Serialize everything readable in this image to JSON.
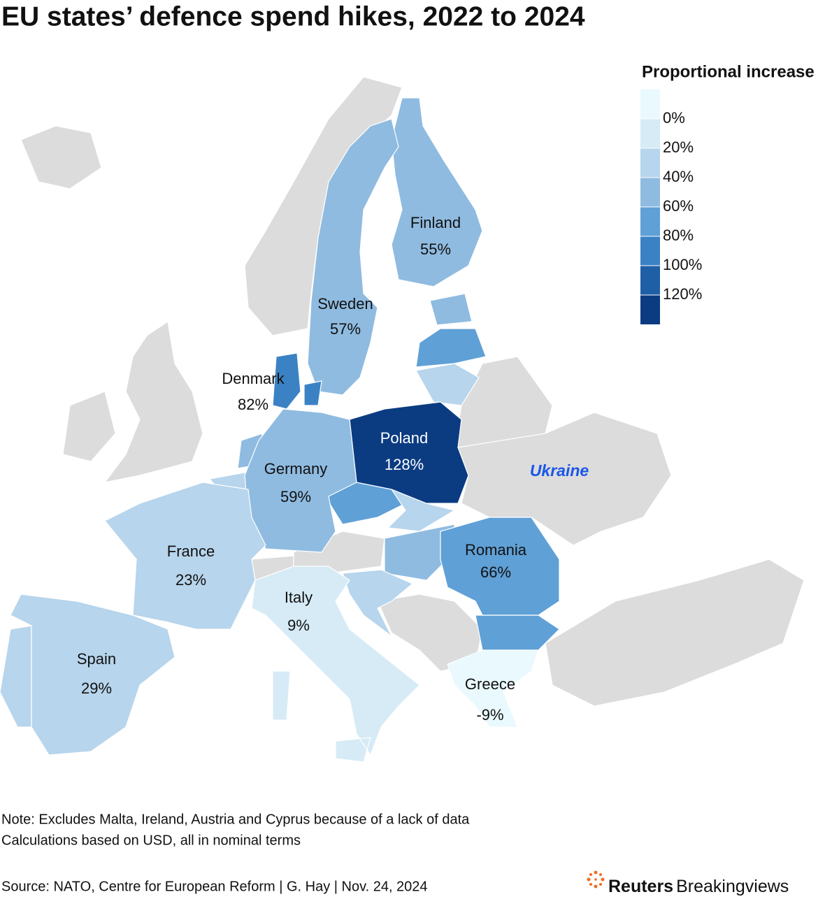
{
  "chart_data": {
    "type": "choropleth",
    "title": "EU states’ defence spend hikes, 2022 to 2024",
    "legend": {
      "title": "Proportional increase",
      "colors": [
        "#e9f9fd",
        "#d6ebf6",
        "#b7d5ec",
        "#8fbbe0",
        "#5fa0d6",
        "#3b82c4",
        "#1f5fa5",
        "#0b3c82"
      ],
      "ticks": [
        {
          "value": 0,
          "label": "0%"
        },
        {
          "value": 20,
          "label": "20%"
        },
        {
          "value": 40,
          "label": "40%"
        },
        {
          "value": 60,
          "label": "60%"
        },
        {
          "value": 80,
          "label": "80%"
        },
        {
          "value": 100,
          "label": "100%"
        },
        {
          "value": 120,
          "label": "120%"
        }
      ]
    },
    "regions": [
      {
        "name": "Finland",
        "value": 55,
        "value_label": "55%"
      },
      {
        "name": "Sweden",
        "value": 57,
        "value_label": "57%"
      },
      {
        "name": "Denmark",
        "value": 82,
        "value_label": "82%"
      },
      {
        "name": "Poland",
        "value": 128,
        "value_label": "128%"
      },
      {
        "name": "Germany",
        "value": 59,
        "value_label": "59%"
      },
      {
        "name": "France",
        "value": 23,
        "value_label": "23%"
      },
      {
        "name": "Italy",
        "value": 9,
        "value_label": "9%"
      },
      {
        "name": "Spain",
        "value": 29,
        "value_label": "29%"
      },
      {
        "name": "Romania",
        "value": 66,
        "value_label": "66%"
      },
      {
        "name": "Greece",
        "value": -9,
        "value_label": "-9%"
      }
    ],
    "annotation": "Ukraine"
  },
  "notes": [
    "Note: Excludes Malta, Ireland, Austria and Cyprus because of a lack of data",
    "Calculations based on USD, all in nominal terms"
  ],
  "source": "Source: NATO, Centre for European Reform | G. Hay | Nov. 24, 2024",
  "brand": {
    "bold": "Reuters",
    "regular": "Breakingviews"
  }
}
